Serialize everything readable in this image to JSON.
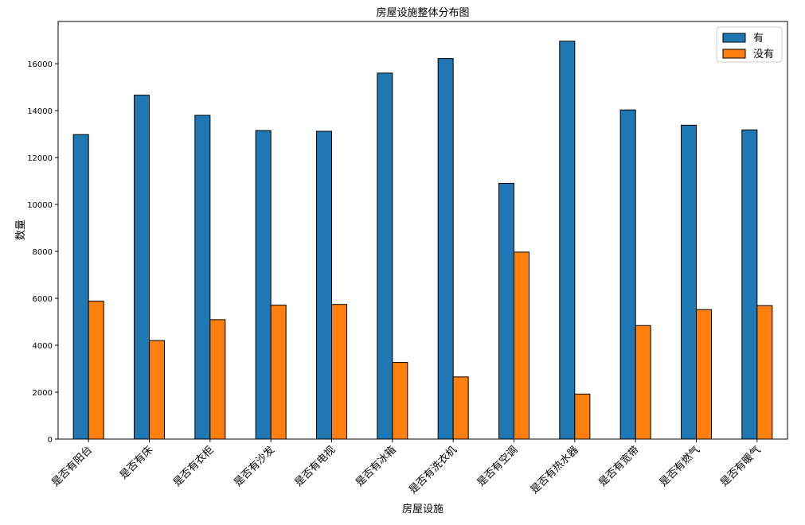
{
  "chart_data": {
    "type": "bar",
    "title": "房屋设施整体分布图",
    "xlabel": "房屋设施",
    "ylabel": "数量",
    "categories": [
      "是否有阳台",
      "是否有床",
      "是否有衣柜",
      "是否有沙发",
      "是否有电视",
      "是否有冰箱",
      "是否有洗衣机",
      "是否有空调",
      "是否有热水器",
      "是否有宽带",
      "是否有燃气",
      "是否有暖气"
    ],
    "series": [
      {
        "name": "有",
        "color": "#1f77b4",
        "values": [
          12980,
          14660,
          13800,
          13150,
          13120,
          15600,
          16220,
          10900,
          16960,
          14030,
          13380,
          13180
        ]
      },
      {
        "name": "没有",
        "color": "#ff7f0e",
        "values": [
          5880,
          4200,
          5090,
          5710,
          5740,
          3270,
          2650,
          7970,
          1920,
          4840,
          5520,
          5690
        ]
      }
    ],
    "ylim": [
      0,
      17800
    ],
    "yticks": [
      0,
      2000,
      4000,
      6000,
      8000,
      10000,
      12000,
      14000,
      16000
    ],
    "legend_position": "top-right",
    "grid": false
  }
}
